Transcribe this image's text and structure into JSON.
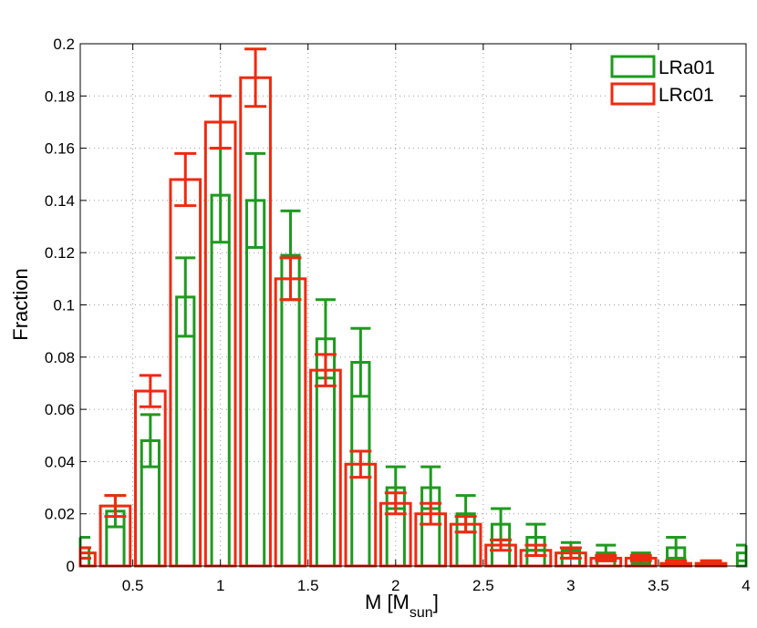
{
  "chart_data": {
    "type": "bar",
    "xlabel_main": "M [M",
    "xlabel_sub": "sun",
    "xlabel_close": "]",
    "ylabel": "Fraction",
    "xlim": [
      0.2,
      4.0
    ],
    "ylim": [
      0,
      0.2
    ],
    "grid": true,
    "legend_position": "top-right",
    "x_ticks": [
      "0.5",
      "1",
      "1.5",
      "2",
      "2.5",
      "3",
      "3.5",
      "4"
    ],
    "y_ticks": [
      "0",
      "0.02",
      "0.04",
      "0.06",
      "0.08",
      "0.1",
      "0.12",
      "0.14",
      "0.16",
      "0.18",
      "0.2"
    ],
    "x": [
      0.2,
      0.4,
      0.6,
      0.8,
      1.0,
      1.2,
      1.4,
      1.6,
      1.8,
      2.0,
      2.2,
      2.4,
      2.6,
      2.8,
      3.0,
      3.2,
      3.4,
      3.6,
      3.8,
      4.0
    ],
    "series": [
      {
        "name": "LRa01",
        "color": "#1f9a1f",
        "values": [
          0.007,
          0.021,
          0.048,
          0.103,
          0.142,
          0.14,
          0.119,
          0.087,
          0.078,
          0.03,
          0.03,
          0.02,
          0.016,
          0.011,
          0.006,
          0.005,
          0.003,
          0.007,
          0.001,
          0.005
        ],
        "errors": [
          0.004,
          0.006,
          0.01,
          0.015,
          0.018,
          0.018,
          0.017,
          0.015,
          0.013,
          0.008,
          0.008,
          0.007,
          0.006,
          0.005,
          0.003,
          0.003,
          0.002,
          0.004,
          0.001,
          0.003
        ]
      },
      {
        "name": "LRc01",
        "color": "#ee2a10",
        "values": [
          0.005,
          0.023,
          0.067,
          0.148,
          0.17,
          0.187,
          0.11,
          0.075,
          0.039,
          0.024,
          0.02,
          0.016,
          0.008,
          0.006,
          0.005,
          0.003,
          0.003,
          0.001,
          0.001,
          0.0
        ],
        "errors": [
          0.002,
          0.004,
          0.006,
          0.01,
          0.01,
          0.011,
          0.008,
          0.006,
          0.005,
          0.004,
          0.004,
          0.003,
          0.002,
          0.002,
          0.002,
          0.001,
          0.001,
          0.001,
          0.001,
          0.0
        ]
      }
    ]
  }
}
